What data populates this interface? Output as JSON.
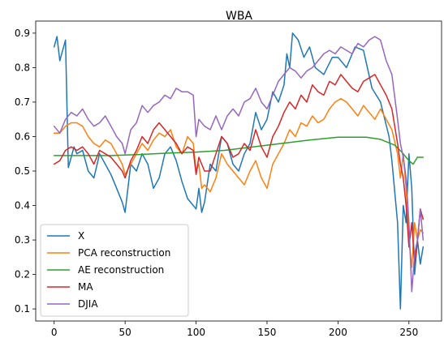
{
  "chart_data": {
    "type": "line",
    "title": "WBA",
    "xlabel": "",
    "ylabel": "",
    "xlim": [
      -13,
      273
    ],
    "ylim": [
      0.065,
      0.935
    ],
    "xticks": [
      0,
      50,
      100,
      150,
      200,
      250
    ],
    "yticks": [
      0.1,
      0.2,
      0.3,
      0.4,
      0.5,
      0.6,
      0.7,
      0.8,
      0.9
    ],
    "grid": false,
    "legend_position": "lower-left",
    "series": [
      {
        "name": "X",
        "color": "#1f77b4",
        "x": [
          0,
          2,
          4,
          6,
          8,
          10,
          12,
          14,
          16,
          20,
          24,
          28,
          32,
          36,
          40,
          44,
          48,
          50,
          54,
          58,
          62,
          66,
          70,
          74,
          78,
          82,
          86,
          90,
          94,
          98,
          100,
          102,
          104,
          106,
          110,
          114,
          118,
          122,
          126,
          130,
          134,
          138,
          142,
          146,
          150,
          154,
          158,
          162,
          164,
          166,
          168,
          172,
          176,
          180,
          184,
          190,
          196,
          200,
          206,
          212,
          218,
          224,
          230,
          236,
          238,
          242,
          244,
          246,
          248,
          250,
          252,
          254,
          256,
          258,
          260
        ],
        "y": [
          0.86,
          0.89,
          0.82,
          0.85,
          0.88,
          0.51,
          0.54,
          0.57,
          0.55,
          0.56,
          0.5,
          0.48,
          0.55,
          0.52,
          0.49,
          0.45,
          0.41,
          0.38,
          0.52,
          0.5,
          0.55,
          0.52,
          0.45,
          0.48,
          0.55,
          0.57,
          0.53,
          0.47,
          0.42,
          0.4,
          0.39,
          0.45,
          0.38,
          0.41,
          0.52,
          0.5,
          0.6,
          0.58,
          0.52,
          0.5,
          0.55,
          0.58,
          0.67,
          0.62,
          0.65,
          0.73,
          0.7,
          0.75,
          0.84,
          0.8,
          0.9,
          0.88,
          0.83,
          0.86,
          0.8,
          0.78,
          0.83,
          0.83,
          0.8,
          0.86,
          0.85,
          0.74,
          0.7,
          0.6,
          0.53,
          0.35,
          0.1,
          0.4,
          0.35,
          0.55,
          0.45,
          0.2,
          0.3,
          0.23,
          0.28
        ]
      },
      {
        "name": "PCA reconstruction",
        "color": "#ff7f0e",
        "x": [
          0,
          4,
          8,
          12,
          16,
          20,
          24,
          28,
          32,
          36,
          40,
          44,
          48,
          50,
          54,
          58,
          62,
          66,
          70,
          74,
          78,
          82,
          86,
          90,
          94,
          98,
          100,
          102,
          104,
          106,
          110,
          114,
          118,
          122,
          126,
          130,
          134,
          138,
          142,
          146,
          150,
          154,
          158,
          162,
          166,
          170,
          174,
          178,
          182,
          186,
          190,
          194,
          198,
          202,
          206,
          210,
          214,
          218,
          222,
          226,
          230,
          234,
          238,
          242,
          244,
          246,
          248,
          250,
          252,
          254,
          256,
          258,
          260
        ],
        "y": [
          0.61,
          0.61,
          0.63,
          0.64,
          0.64,
          0.63,
          0.6,
          0.58,
          0.57,
          0.59,
          0.58,
          0.55,
          0.52,
          0.49,
          0.52,
          0.55,
          0.58,
          0.56,
          0.59,
          0.61,
          0.6,
          0.62,
          0.57,
          0.55,
          0.6,
          0.58,
          0.5,
          0.52,
          0.45,
          0.46,
          0.44,
          0.48,
          0.55,
          0.52,
          0.5,
          0.48,
          0.46,
          0.5,
          0.53,
          0.48,
          0.45,
          0.52,
          0.55,
          0.58,
          0.62,
          0.6,
          0.64,
          0.63,
          0.66,
          0.64,
          0.65,
          0.68,
          0.7,
          0.71,
          0.7,
          0.68,
          0.66,
          0.69,
          0.67,
          0.65,
          0.68,
          0.65,
          0.62,
          0.55,
          0.48,
          0.55,
          0.45,
          0.3,
          0.22,
          0.35,
          0.3,
          0.33,
          0.32
        ]
      },
      {
        "name": "AE reconstruction",
        "color": "#2ca02c",
        "x": [
          0,
          20,
          40,
          60,
          80,
          100,
          120,
          140,
          160,
          180,
          200,
          220,
          230,
          240,
          245,
          250,
          253,
          256,
          260
        ],
        "y": [
          0.545,
          0.545,
          0.545,
          0.548,
          0.552,
          0.555,
          0.56,
          0.57,
          0.58,
          0.59,
          0.598,
          0.598,
          0.592,
          0.575,
          0.555,
          0.53,
          0.52,
          0.54,
          0.54
        ]
      },
      {
        "name": "MA",
        "color": "#d62728",
        "x": [
          0,
          4,
          8,
          12,
          16,
          20,
          24,
          28,
          32,
          36,
          40,
          44,
          48,
          50,
          54,
          58,
          62,
          66,
          70,
          74,
          78,
          82,
          86,
          90,
          94,
          98,
          100,
          102,
          106,
          110,
          114,
          118,
          122,
          126,
          130,
          134,
          138,
          142,
          146,
          150,
          154,
          158,
          162,
          166,
          170,
          174,
          178,
          182,
          186,
          190,
          194,
          198,
          202,
          206,
          210,
          214,
          218,
          222,
          226,
          230,
          234,
          238,
          242,
          244,
          246,
          248,
          250,
          252,
          254,
          256,
          258,
          260
        ],
        "y": [
          0.52,
          0.53,
          0.56,
          0.57,
          0.56,
          0.57,
          0.55,
          0.52,
          0.56,
          0.55,
          0.54,
          0.52,
          0.5,
          0.48,
          0.53,
          0.56,
          0.6,
          0.58,
          0.62,
          0.64,
          0.62,
          0.6,
          0.58,
          0.55,
          0.57,
          0.56,
          0.49,
          0.54,
          0.5,
          0.5,
          0.55,
          0.6,
          0.58,
          0.54,
          0.55,
          0.58,
          0.56,
          0.62,
          0.57,
          0.54,
          0.6,
          0.63,
          0.67,
          0.7,
          0.68,
          0.72,
          0.7,
          0.75,
          0.73,
          0.72,
          0.76,
          0.75,
          0.78,
          0.76,
          0.74,
          0.73,
          0.76,
          0.77,
          0.78,
          0.75,
          0.72,
          0.68,
          0.58,
          0.52,
          0.48,
          0.4,
          0.28,
          0.35,
          0.23,
          0.3,
          0.39,
          0.36
        ]
      },
      {
        "name": "DJIA",
        "color": "#9467bd",
        "x": [
          0,
          4,
          8,
          12,
          16,
          20,
          24,
          28,
          32,
          36,
          40,
          44,
          48,
          50,
          54,
          58,
          62,
          66,
          70,
          74,
          78,
          82,
          86,
          90,
          94,
          98,
          100,
          102,
          106,
          110,
          114,
          118,
          122,
          126,
          130,
          134,
          138,
          142,
          146,
          150,
          154,
          158,
          162,
          166,
          170,
          174,
          178,
          182,
          186,
          190,
          194,
          198,
          202,
          206,
          210,
          214,
          218,
          222,
          226,
          230,
          234,
          238,
          242,
          244,
          246,
          248,
          250,
          252,
          254,
          256,
          258,
          260
        ],
        "y": [
          0.63,
          0.61,
          0.65,
          0.67,
          0.66,
          0.68,
          0.65,
          0.63,
          0.64,
          0.66,
          0.63,
          0.6,
          0.58,
          0.55,
          0.62,
          0.64,
          0.69,
          0.67,
          0.69,
          0.7,
          0.72,
          0.71,
          0.74,
          0.73,
          0.73,
          0.72,
          0.6,
          0.65,
          0.63,
          0.62,
          0.66,
          0.62,
          0.66,
          0.68,
          0.66,
          0.7,
          0.71,
          0.74,
          0.7,
          0.68,
          0.72,
          0.76,
          0.78,
          0.8,
          0.79,
          0.77,
          0.79,
          0.8,
          0.82,
          0.84,
          0.85,
          0.84,
          0.86,
          0.85,
          0.84,
          0.87,
          0.86,
          0.88,
          0.89,
          0.88,
          0.82,
          0.78,
          0.65,
          0.58,
          0.54,
          0.48,
          0.35,
          0.15,
          0.26,
          0.3,
          0.39,
          0.3
        ]
      }
    ]
  }
}
